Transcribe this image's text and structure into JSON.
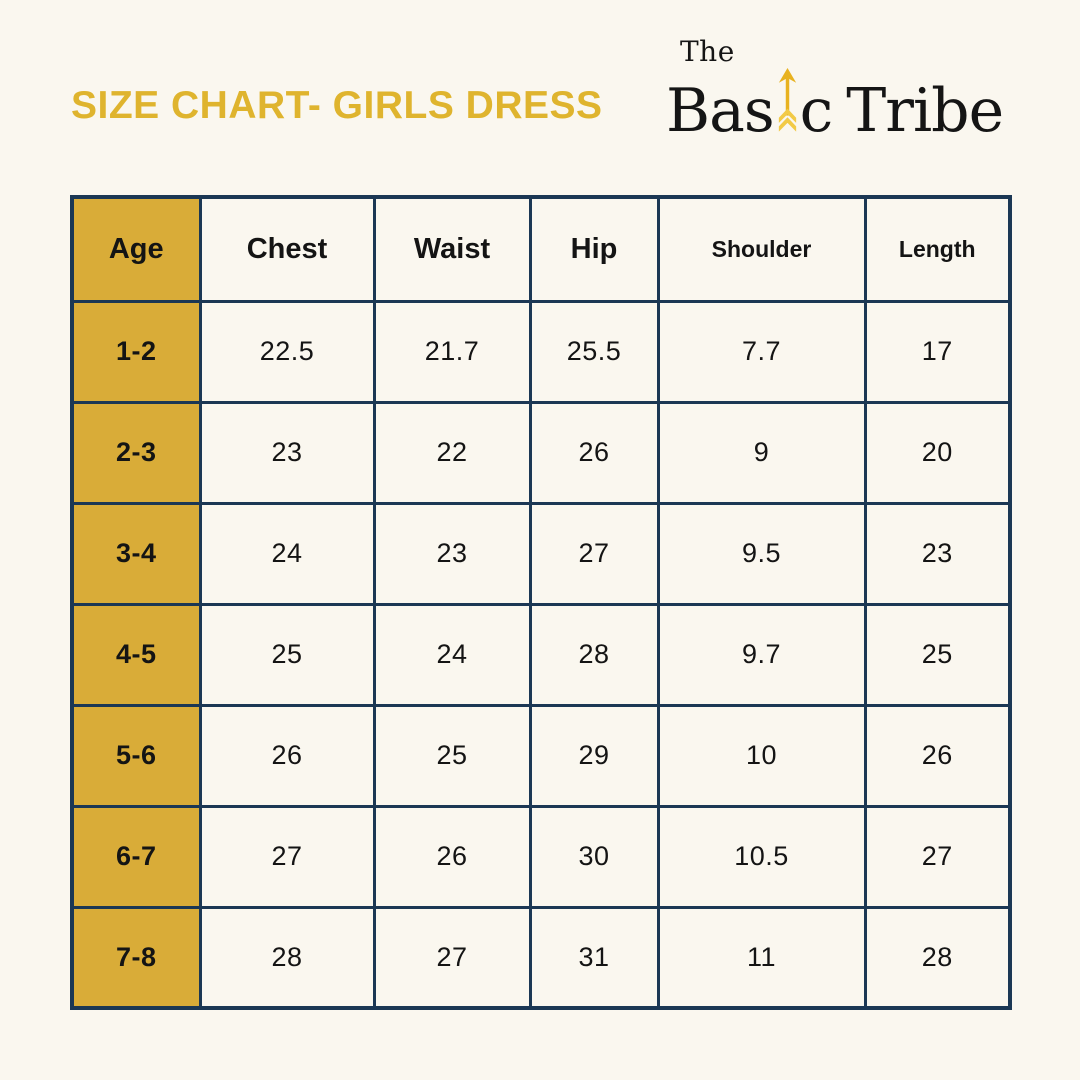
{
  "page": {
    "background": "#FAF7EF"
  },
  "header": {
    "title": "SIZE CHART- GIRLS DRESS",
    "title_color": "#DFB42E",
    "logo": {
      "line1": "The",
      "word1_part1": "Bas",
      "word1_part2": "c",
      "word2": "Tribe",
      "arrow_icon": "up-arrow-with-fletching",
      "arrow_color": "#E8B21F",
      "arrow_fletch_color": "#F2CA46"
    }
  },
  "chart_data": {
    "type": "table",
    "title": "SIZE CHART- GIRLS DRESS",
    "columns": [
      "Age",
      "Chest",
      "Waist",
      "Hip",
      "Shoulder",
      "Length"
    ],
    "rows": [
      [
        "1-2",
        "22.5",
        "21.7",
        "25.5",
        "7.7",
        "17"
      ],
      [
        "2-3",
        "23",
        "22",
        "26",
        "9",
        "20"
      ],
      [
        "3-4",
        "24",
        "23",
        "27",
        "9.5",
        "23"
      ],
      [
        "4-5",
        "25",
        "24",
        "28",
        "9.7",
        "25"
      ],
      [
        "5-6",
        "26",
        "25",
        "29",
        "10",
        "26"
      ],
      [
        "6-7",
        "27",
        "26",
        "30",
        "10.5",
        "27"
      ],
      [
        "7-8",
        "28",
        "27",
        "31",
        "11",
        "28"
      ]
    ],
    "accent_color": "#D9AC38",
    "border_color": "#1B3754",
    "highlight_column": "Age",
    "layout": {
      "grid": true,
      "header_row": true,
      "highlight_first_column": true
    }
  }
}
